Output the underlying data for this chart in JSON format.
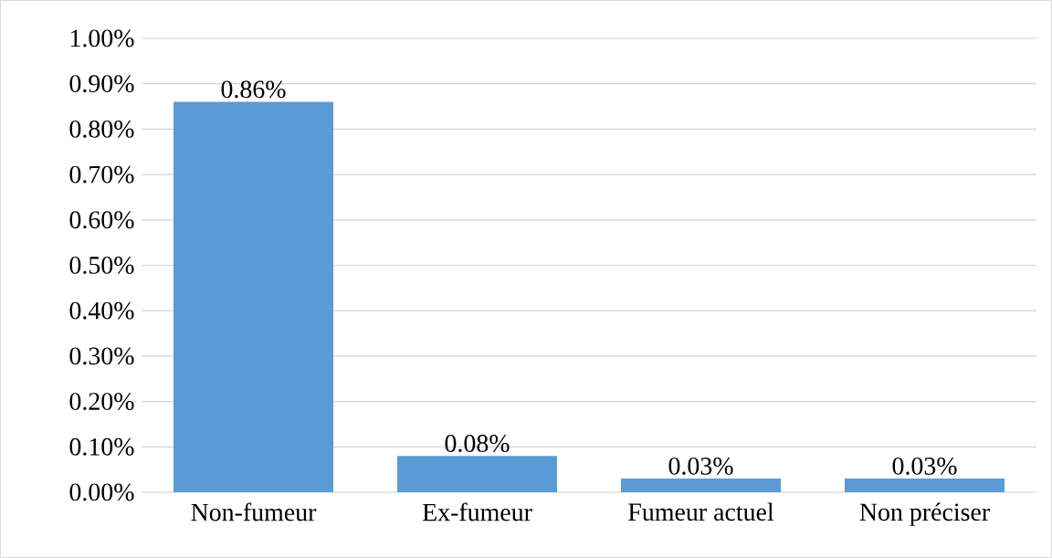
{
  "chart_data": {
    "type": "bar",
    "categories": [
      "Non-fumeur",
      "Ex-fumeur",
      "Fumeur actuel",
      "Non préciser"
    ],
    "values": [
      0.86,
      0.08,
      0.03,
      0.03
    ],
    "value_labels": [
      "0.86%",
      "0.08%",
      "0.03%",
      "0.03%"
    ],
    "color": "#5b9bd5",
    "ylim": [
      0,
      1
    ],
    "yticks": [
      {
        "value": 0,
        "label": "0.00%"
      },
      {
        "value": 0.1,
        "label": "0.10%"
      },
      {
        "value": 0.2,
        "label": "0.20%"
      },
      {
        "value": 0.3,
        "label": "0.30%"
      },
      {
        "value": 0.4,
        "label": "0.40%"
      },
      {
        "value": 0.5,
        "label": "0.50%"
      },
      {
        "value": 0.6,
        "label": "0.60%"
      },
      {
        "value": 0.7,
        "label": "0.70%"
      },
      {
        "value": 0.8,
        "label": "0.80%"
      },
      {
        "value": 0.9,
        "label": "0.90%"
      },
      {
        "value": 1,
        "label": "1.00%"
      }
    ],
    "grid": "y"
  }
}
